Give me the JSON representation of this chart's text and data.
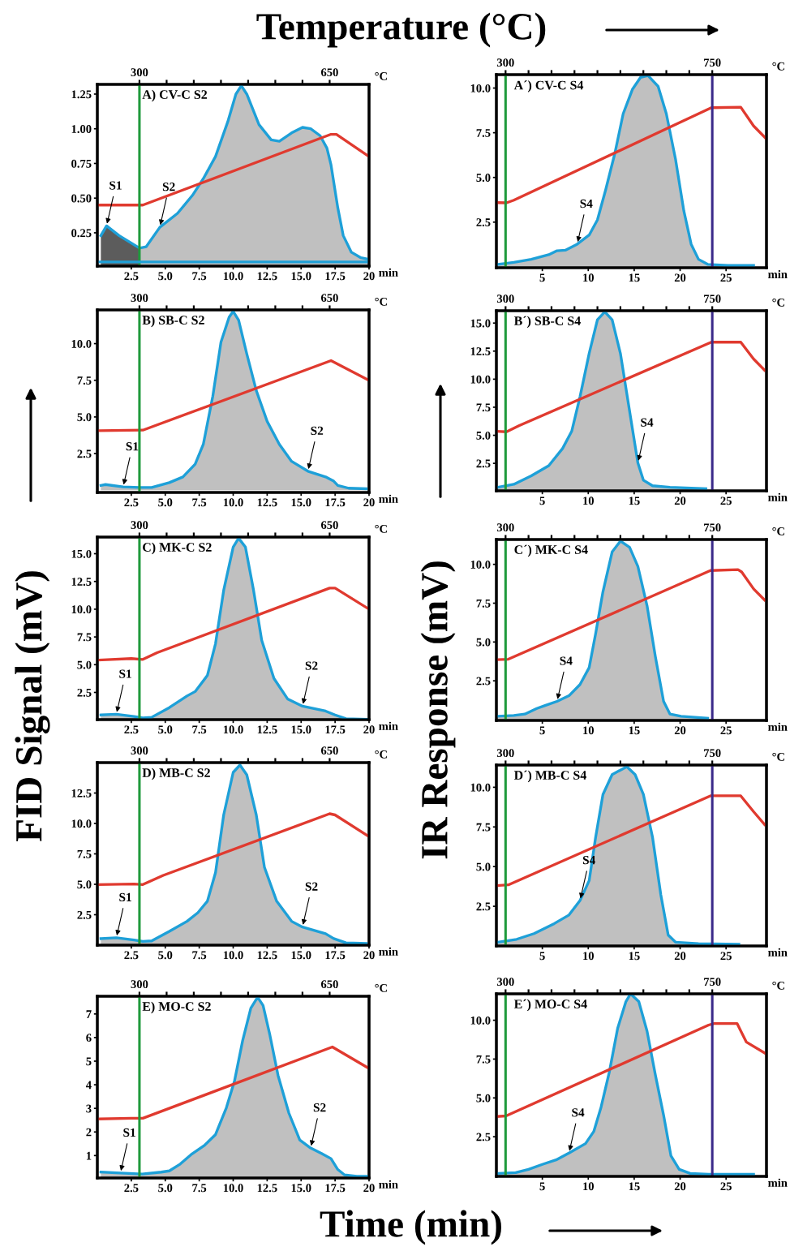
{
  "chart_data": [
    {
      "type": "line",
      "title": "A) CV-C S2",
      "xlabel": "min",
      "x2label": "°C",
      "xlim": [
        0,
        20
      ],
      "ylim": [
        0.01,
        1.32
      ],
      "xticks": [
        2.5,
        {
          "value": 5,
          "label": "5.0"
        },
        7.5,
        {
          "value": 10,
          "label": "10.0"
        },
        12.5,
        {
          "value": 15,
          "label": "15.0"
        },
        17.5,
        20
      ],
      "yticks": [
        0.25,
        {
          "value": 0.5,
          "label": "0.50"
        },
        0.75,
        {
          "value": 1,
          "label": "1.00"
        },
        1.25
      ],
      "x2lim": [
        222.5,
        722.5
      ],
      "x2ticks": [
        300,
        {
          "value": 350,
          "label": null
        },
        {
          "value": 400,
          "label": null
        },
        {
          "value": 450,
          "label": null
        },
        {
          "value": 500,
          "label": null
        },
        {
          "value": 550,
          "label": null
        },
        {
          "value": 600,
          "label": null
        },
        650
      ],
      "ref_lines": [
        {
          "axis": "x",
          "value": 3.1,
          "color": "#1f9a3c"
        },
        {
          "axis": "y",
          "value": 0.04,
          "color": "#1ea0d8"
        }
      ],
      "series": [
        {
          "type": "area",
          "color": "#5c5c5c",
          "x": [
            0.26,
            0.68,
            1.6,
            3.1
          ],
          "values": [
            0.23,
            0.3,
            0.23,
            0.14
          ]
        },
        {
          "type": "area",
          "color": "#c0c0c0",
          "x": [
            3.1,
            3.6,
            4.6,
            5.9,
            7.0,
            7.8,
            8.7,
            9.6,
            10.2,
            10.6,
            11.0,
            11.9,
            12.8,
            13.4,
            14.3,
            15.1,
            15.7,
            16.4,
            16.9,
            17.2,
            17.7,
            18.1,
            18.7,
            19.4,
            19.9
          ],
          "values": [
            0.14,
            0.15,
            0.29,
            0.39,
            0.52,
            0.64,
            0.8,
            1.05,
            1.25,
            1.31,
            1.25,
            1.03,
            0.92,
            0.91,
            0.97,
            1.01,
            1.0,
            0.95,
            0.86,
            0.74,
            0.43,
            0.23,
            0.11,
            0.07,
            0.06
          ]
        },
        {
          "color": "#e03a2f",
          "x": [
            0.1,
            3.35,
            17.2,
            17.6,
            20
          ],
          "values": [
            0.45,
            0.45,
            0.96,
            0.96,
            0.8
          ]
        }
      ],
      "annotations": [
        {
          "text": "S1",
          "x": 0.68,
          "y": 0.3
        },
        {
          "text": "S2",
          "x": 4.6,
          "y": 0.29
        },
        "Temperature (°C)",
        "FID Signal (mV)",
        "IR Response (mV)",
        "Time (min)"
      ]
    },
    {
      "type": "line",
      "title": "A´) CV-C S4",
      "xlabel": "min",
      "x2label": "°C",
      "xlim": [
        0,
        29.4
      ],
      "ylim": [
        -0.05,
        10.75
      ],
      "xticks": [
        5,
        10,
        15,
        20,
        25
      ],
      "yticks": [
        2.5,
        {
          "value": 5,
          "label": "5.0"
        },
        7.5,
        {
          "value": 10,
          "label": "10.0"
        }
      ],
      "x2lim": [
        280,
        868
      ],
      "x2ticks": [
        300,
        {
          "value": 350,
          "label": null
        },
        {
          "value": 400,
          "label": null
        },
        {
          "value": 450,
          "label": null
        },
        {
          "value": 500,
          "label": null
        },
        {
          "value": 550,
          "label": null
        },
        {
          "value": 600,
          "label": null
        },
        {
          "value": 650,
          "label": null
        },
        {
          "value": 700,
          "label": null
        },
        750
      ],
      "ref_lines": [
        {
          "axis": "x",
          "value": 1.0,
          "color": "#1f9a3c"
        },
        {
          "axis": "x",
          "value": 23.5,
          "color": "#3b2a8a"
        }
      ],
      "series": [
        {
          "type": "area",
          "color": "#c0c0c0",
          "x": [
            0.16,
            1.9,
            3.8,
            5.7,
            6.6,
            7.5,
            8.8,
            10.1,
            11.0,
            11.9,
            12.9,
            13.8,
            14.8,
            15.7,
            16.5,
            17.6,
            18.5,
            19.5,
            20.4,
            21.2,
            22.0,
            23.0,
            25.2,
            28.0
          ],
          "values": [
            0.14,
            0.25,
            0.42,
            0.68,
            0.9,
            0.93,
            1.27,
            1.78,
            2.63,
            4.32,
            6.36,
            8.56,
            9.92,
            10.6,
            10.7,
            10.1,
            8.56,
            6.02,
            3.14,
            1.27,
            0.42,
            0.14,
            0.08,
            0.08
          ]
        },
        {
          "color": "#e03a2f",
          "x": [
            0,
            1.1,
            1.9,
            23.4,
            26.6,
            28.0,
            29.4
          ],
          "values": [
            3.59,
            3.58,
            3.73,
            8.9,
            8.93,
            7.88,
            7.15
          ]
        }
      ],
      "annotations": [
        {
          "text": "S4",
          "x": 8.8,
          "y": 1.27
        }
      ]
    },
    {
      "type": "line",
      "title": "B) SB-C S2",
      "xlabel": "min",
      "x2label": "°C",
      "xlim": [
        0,
        20
      ],
      "ylim": [
        -0.15,
        12.3
      ],
      "xticks": [
        2.5,
        {
          "value": 5,
          "label": "5.0"
        },
        7.5,
        {
          "value": 10,
          "label": "10.0"
        },
        12.5,
        {
          "value": 15,
          "label": "15.0"
        },
        17.5,
        20
      ],
      "yticks": [
        2.5,
        {
          "value": 5,
          "label": "5.0"
        },
        7.5,
        {
          "value": 10,
          "label": "10.0"
        }
      ],
      "x2lim": [
        222.5,
        722.5
      ],
      "x2ticks": [
        300,
        {
          "value": 350,
          "label": null
        },
        {
          "value": 400,
          "label": null
        },
        {
          "value": 450,
          "label": null
        },
        {
          "value": 500,
          "label": null
        },
        {
          "value": 550,
          "label": null
        },
        {
          "value": 600,
          "label": null
        },
        650
      ],
      "ref_lines": [
        {
          "axis": "x",
          "value": 3.1,
          "color": "#1f9a3c"
        }
      ],
      "series": [
        {
          "type": "area",
          "color": "#c0c0c0",
          "x": [
            0.26,
            0.6,
            1.9,
            3.1,
            4.0,
            5.3,
            6.3,
            7.2,
            7.8,
            8.5,
            9.1,
            9.7,
            10.0,
            10.4,
            11.0,
            11.7,
            12.5,
            13.4,
            14.3,
            15.5,
            16.8,
            17.4,
            17.7,
            18.5,
            19.8
          ],
          "values": [
            0.33,
            0.39,
            0.23,
            0.19,
            0.19,
            0.52,
            0.91,
            1.78,
            3.13,
            6.42,
            10.1,
            11.8,
            12.2,
            11.6,
            9.3,
            6.8,
            4.7,
            3.13,
            1.97,
            1.3,
            0.91,
            0.62,
            0.33,
            0.14,
            0.1
          ]
        },
        {
          "color": "#e03a2f",
          "x": [
            0.1,
            3.35,
            17.2,
            20
          ],
          "values": [
            4.06,
            4.1,
            8.84,
            7.49
          ]
        }
      ],
      "annotations": [
        {
          "text": "S1",
          "x": 1.9,
          "y": 0.23
        },
        {
          "text": "S2",
          "x": 15.5,
          "y": 1.3
        }
      ]
    },
    {
      "type": "line",
      "title": "B´) SB-C S4",
      "xlabel": "min",
      "x2label": "°C",
      "xlim": [
        0,
        29.4
      ],
      "ylim": [
        0.05,
        16.1
      ],
      "xticks": [
        5,
        10,
        15,
        20,
        25
      ],
      "yticks": [
        2.5,
        {
          "value": 5,
          "label": "5.0"
        },
        7.5,
        {
          "value": 10,
          "label": "10.0"
        },
        12.5,
        {
          "value": 15,
          "label": "15.0"
        }
      ],
      "x2lim": [
        280,
        868
      ],
      "x2ticks": [
        300,
        {
          "value": 350,
          "label": null
        },
        {
          "value": 400,
          "label": null
        },
        {
          "value": 450,
          "label": null
        },
        {
          "value": 500,
          "label": null
        },
        {
          "value": 550,
          "label": null
        },
        {
          "value": 600,
          "label": null
        },
        {
          "value": 650,
          "label": null
        },
        {
          "value": 700,
          "label": null
        },
        750
      ],
      "ref_lines": [
        {
          "axis": "x",
          "value": 1.0,
          "color": "#1f9a3c"
        },
        {
          "axis": "x",
          "value": 23.5,
          "color": "#3b2a8a"
        }
      ],
      "series": [
        {
          "type": "area",
          "color": "#c0c0c0",
          "x": [
            0.16,
            1.9,
            3.8,
            5.7,
            7.2,
            8.2,
            9.1,
            10.1,
            11.0,
            11.8,
            12.6,
            13.5,
            14.5,
            15.4,
            16.0,
            17.0,
            18.9,
            22.8
          ],
          "values": [
            0.37,
            0.63,
            1.39,
            2.29,
            3.82,
            5.36,
            8.43,
            12.3,
            15.3,
            16.0,
            15.3,
            12.3,
            7.15,
            2.54,
            1.0,
            0.5,
            0.37,
            0.24
          ]
        },
        {
          "color": "#e03a2f",
          "x": [
            0,
            1.1,
            2.5,
            23.4,
            26.6,
            28.0,
            29.2
          ],
          "values": [
            5.36,
            5.31,
            5.87,
            13.3,
            13.3,
            11.8,
            10.8
          ]
        }
      ],
      "annotations": [
        {
          "text": "S4",
          "x": 15.4,
          "y": 2.54
        }
      ]
    },
    {
      "type": "line",
      "title": "C) MK-C S2",
      "xlabel": "min",
      "x2label": "°C",
      "xlim": [
        0,
        20
      ],
      "ylim": [
        0.05,
        16.5
      ],
      "xticks": [
        2.5,
        {
          "value": 5,
          "label": "5.0"
        },
        7.5,
        {
          "value": 10,
          "label": "10.0"
        },
        12.5,
        {
          "value": 15,
          "label": "15.0"
        },
        17.5,
        20
      ],
      "yticks": [
        2.5,
        {
          "value": 5,
          "label": "5.0"
        },
        7.5,
        {
          "value": 10,
          "label": "10.0"
        },
        12.5,
        {
          "value": 15,
          "label": "15.0"
        }
      ],
      "x2lim": [
        222.5,
        722.5
      ],
      "x2ticks": [
        300,
        {
          "value": 350,
          "label": null
        },
        {
          "value": 400,
          "label": null
        },
        {
          "value": 450,
          "label": null
        },
        {
          "value": 500,
          "label": null
        },
        {
          "value": 550,
          "label": null
        },
        {
          "value": 600,
          "label": null
        },
        650
      ],
      "ref_lines": [
        {
          "axis": "x",
          "value": 3.1,
          "color": "#1f9a3c"
        }
      ],
      "series": [
        {
          "type": "area",
          "color": "#c0c0c0",
          "x": [
            0.26,
            1.4,
            2.7,
            3.35,
            4.0,
            5.3,
            6.6,
            7.2,
            8.1,
            8.7,
            9.3,
            10.0,
            10.4,
            10.9,
            11.5,
            12.1,
            13.0,
            14.0,
            15.1,
            16.8,
            17.5,
            18.3,
            19.8
          ],
          "values": [
            0.47,
            0.53,
            0.34,
            0.21,
            0.26,
            1.13,
            2.18,
            2.58,
            4.03,
            6.9,
            11.7,
            15.6,
            16.4,
            15.6,
            11.7,
            7.2,
            3.76,
            1.92,
            1.26,
            0.82,
            0.47,
            0.13,
            0.08
          ]
        },
        {
          "color": "#e03a2f",
          "x": [
            0.1,
            2.5,
            3.35,
            4.4,
            17.1,
            17.5,
            20
          ],
          "values": [
            5.42,
            5.55,
            5.47,
            6.08,
            11.9,
            11.9,
            10.0
          ]
        }
      ],
      "annotations": [
        {
          "text": "S1",
          "x": 1.4,
          "y": 0.53
        },
        {
          "text": "S2",
          "x": 15.1,
          "y": 1.26
        }
      ]
    },
    {
      "type": "line",
      "title": "C´) MK-C S4",
      "xlabel": "min",
      "x2label": "°C",
      "xlim": [
        0,
        29.4
      ],
      "ylim": [
        -0.05,
        11.6
      ],
      "xticks": [
        5,
        10,
        15,
        20,
        25
      ],
      "yticks": [
        2.5,
        {
          "value": 5,
          "label": "5.0"
        },
        7.5,
        {
          "value": 10,
          "label": "10.0"
        }
      ],
      "x2lim": [
        280,
        868
      ],
      "x2ticks": [
        300,
        {
          "value": 350,
          "label": null
        },
        {
          "value": 400,
          "label": null
        },
        {
          "value": 450,
          "label": null
        },
        {
          "value": 500,
          "label": null
        },
        {
          "value": 550,
          "label": null
        },
        {
          "value": 600,
          "label": null
        },
        {
          "value": 650,
          "label": null
        },
        {
          "value": 700,
          "label": null
        },
        750
      ],
      "ref_lines": [
        {
          "axis": "x",
          "value": 1.0,
          "color": "#1f9a3c"
        },
        {
          "axis": "x",
          "value": 23.5,
          "color": "#3b2a8a"
        }
      ],
      "series": [
        {
          "type": "area",
          "color": "#c0c0c0",
          "x": [
            0.16,
            1.9,
            3.1,
            4.4,
            5.3,
            6.6,
            7.9,
            9.1,
            10.1,
            10.8,
            11.6,
            12.6,
            13.5,
            14.5,
            15.4,
            16.4,
            17.3,
            18.2,
            18.9,
            20.1,
            23.0
          ],
          "values": [
            0.22,
            0.27,
            0.36,
            0.72,
            0.91,
            1.18,
            1.54,
            2.26,
            3.35,
            5.53,
            8.24,
            10.8,
            11.5,
            11.1,
            9.87,
            7.34,
            4.08,
            1.18,
            0.36,
            0.22,
            0.09
          ]
        },
        {
          "color": "#e03a2f",
          "x": [
            0,
            1.3,
            23.3,
            26.3,
            26.7,
            28.0,
            29.2
          ],
          "values": [
            3.86,
            3.89,
            9.6,
            9.66,
            9.51,
            8.42,
            7.7
          ]
        }
      ],
      "annotations": [
        {
          "text": "S4",
          "x": 6.6,
          "y": 1.18
        }
      ]
    },
    {
      "type": "line",
      "title": "D) MB-C S2",
      "xlabel": "min",
      "x2label": "°C",
      "xlim": [
        0,
        20
      ],
      "ylim": [
        0,
        15.0
      ],
      "xticks": [
        2.5,
        {
          "value": 5,
          "label": "5.0"
        },
        7.5,
        {
          "value": 10,
          "label": "10.0"
        },
        12.5,
        {
          "value": 15,
          "label": "15.0"
        },
        17.5,
        20
      ],
      "yticks": [
        2.5,
        {
          "value": 5,
          "label": "5.0"
        },
        7.5,
        {
          "value": 10,
          "label": "10.0"
        },
        12.5
      ],
      "x2lim": [
        222.5,
        722.5
      ],
      "x2ticks": [
        300,
        {
          "value": 350,
          "label": null
        },
        {
          "value": 400,
          "label": null
        },
        {
          "value": 450,
          "label": null
        },
        {
          "value": 500,
          "label": null
        },
        {
          "value": 550,
          "label": null
        },
        {
          "value": 600,
          "label": null
        },
        650
      ],
      "ref_lines": [
        {
          "axis": "x",
          "value": 3.1,
          "color": "#1f9a3c"
        }
      ],
      "series": [
        {
          "type": "area",
          "color": "#c0c0c0",
          "x": [
            0.26,
            1.4,
            2.7,
            3.35,
            4.0,
            5.3,
            6.6,
            7.4,
            8.1,
            8.7,
            9.3,
            10.0,
            10.5,
            11.0,
            11.7,
            12.3,
            13.2,
            14.3,
            15.1,
            16.8,
            17.4,
            18.3,
            19.8
          ],
          "values": [
            0.54,
            0.61,
            0.42,
            0.31,
            0.35,
            1.13,
            1.96,
            2.67,
            3.61,
            5.97,
            10.7,
            14.2,
            14.8,
            14.0,
            10.7,
            6.4,
            3.61,
            1.96,
            1.49,
            0.94,
            0.54,
            0.19,
            0.14
          ]
        },
        {
          "color": "#e03a2f",
          "x": [
            0.1,
            2.7,
            3.35,
            4.85,
            17.1,
            17.5,
            20
          ],
          "values": [
            4.98,
            5.02,
            4.98,
            5.73,
            10.8,
            10.7,
            8.92
          ]
        }
      ],
      "annotations": [
        {
          "text": "S1",
          "x": 1.4,
          "y": 0.61
        },
        {
          "text": "S2",
          "x": 15.1,
          "y": 1.49
        }
      ]
    },
    {
      "type": "line",
      "title": "D´) MB-C S4",
      "xlabel": "min",
      "x2label": "°C",
      "xlim": [
        0,
        29.4
      ],
      "ylim": [
        0,
        11.4
      ],
      "xticks": [
        5,
        10,
        15,
        20,
        25
      ],
      "yticks": [
        2.5,
        {
          "value": 5,
          "label": "5.0"
        },
        7.5,
        {
          "value": 10,
          "label": "10.0"
        }
      ],
      "x2lim": [
        280,
        868
      ],
      "x2ticks": [
        300,
        {
          "value": 350,
          "label": null
        },
        {
          "value": 400,
          "label": null
        },
        {
          "value": 450,
          "label": null
        },
        {
          "value": 500,
          "label": null
        },
        {
          "value": 550,
          "label": null
        },
        {
          "value": 600,
          "label": null
        },
        {
          "value": 650,
          "label": null
        },
        {
          "value": 700,
          "label": null
        },
        750
      ],
      "ref_lines": [
        {
          "axis": "x",
          "value": 1.0,
          "color": "#1f9a3c"
        },
        {
          "axis": "x",
          "value": 23.5,
          "color": "#3b2a8a"
        }
      ],
      "series": [
        {
          "type": "area",
          "color": "#c0c0c0",
          "x": [
            0.16,
            2.2,
            4.1,
            6.3,
            7.9,
            9.1,
            10.1,
            10.8,
            11.6,
            12.6,
            14.2,
            15.1,
            16.0,
            17.0,
            17.9,
            18.7,
            19.5,
            22.0,
            26.4
          ],
          "values": [
            0.24,
            0.42,
            0.78,
            1.41,
            1.95,
            2.86,
            4.12,
            6.84,
            9.55,
            10.8,
            11.3,
            10.8,
            9.55,
            6.84,
            3.22,
            0.69,
            0.24,
            0.15,
            0.11
          ]
        },
        {
          "color": "#e03a2f",
          "x": [
            0,
            1.3,
            23.3,
            26.6,
            28.0,
            29.2
          ],
          "values": [
            3.8,
            3.85,
            9.46,
            9.46,
            8.46,
            7.65
          ]
        }
      ],
      "annotations": [
        {
          "text": "S4",
          "x": 9.1,
          "y": 2.86
        }
      ]
    },
    {
      "type": "line",
      "title": "E) MO-C S2",
      "xlabel": "min",
      "x2label": "°C",
      "xlim": [
        0,
        20
      ],
      "ylim": [
        0.05,
        7.75
      ],
      "xticks": [
        2.5,
        {
          "value": 5,
          "label": "5.0"
        },
        7.5,
        {
          "value": 10,
          "label": "10.0"
        },
        12.5,
        {
          "value": 15,
          "label": "15.0"
        },
        17.5,
        20
      ],
      "yticks": [
        1,
        2,
        3,
        4,
        5,
        6,
        7
      ],
      "x2lim": [
        222.5,
        722.5
      ],
      "x2ticks": [
        300,
        {
          "value": 350,
          "label": null
        },
        {
          "value": 400,
          "label": null
        },
        {
          "value": 450,
          "label": null
        },
        {
          "value": 500,
          "label": null
        },
        {
          "value": 550,
          "label": null
        },
        {
          "value": 600,
          "label": null
        },
        650
      ],
      "ref_lines": [
        {
          "axis": "x",
          "value": 3.1,
          "color": "#1f9a3c"
        }
      ],
      "series": [
        {
          "type": "area",
          "color": "#c0c0c0",
          "x": [
            0.26,
            1.7,
            3.3,
            4.7,
            5.3,
            6.1,
            6.9,
            7.9,
            8.7,
            9.5,
            10.1,
            10.7,
            11.3,
            11.8,
            12.2,
            12.7,
            13.3,
            14.1,
            14.9,
            15.7,
            16.5,
            17.2,
            17.7,
            18.2,
            19.1,
            20.0
          ],
          "values": [
            0.3,
            0.26,
            0.22,
            0.3,
            0.35,
            0.64,
            1.04,
            1.44,
            1.89,
            3.03,
            4.17,
            5.88,
            7.25,
            7.71,
            7.36,
            6.11,
            4.4,
            2.8,
            1.66,
            1.32,
            1.09,
            0.87,
            0.41,
            0.18,
            0.12,
            0.12
          ]
        },
        {
          "color": "#e03a2f",
          "x": [
            0.1,
            2.5,
            3.35,
            17.3,
            20
          ],
          "values": [
            2.55,
            2.58,
            2.58,
            5.6,
            4.69
          ]
        }
      ],
      "annotations": [
        {
          "text": "S1",
          "x": 1.7,
          "y": 0.26
        },
        {
          "text": "S2",
          "x": 15.7,
          "y": 1.32
        }
      ]
    },
    {
      "type": "line",
      "title": "E´) MO-C S4",
      "xlabel": "min",
      "x2label": "°C",
      "xlim": [
        0,
        29.4
      ],
      "ylim": [
        -0.05,
        11.7
      ],
      "xticks": [
        5,
        10,
        15,
        20,
        25
      ],
      "yticks": [
        2.5,
        {
          "value": 5,
          "label": "5.0"
        },
        7.5,
        {
          "value": 10,
          "label": "10.0"
        }
      ],
      "x2lim": [
        280,
        868
      ],
      "x2ticks": [
        300,
        {
          "value": 350,
          "label": null
        },
        {
          "value": 400,
          "label": null
        },
        {
          "value": 450,
          "label": null
        },
        {
          "value": 500,
          "label": null
        },
        {
          "value": 550,
          "label": null
        },
        {
          "value": 600,
          "label": null
        },
        {
          "value": 650,
          "label": null
        },
        {
          "value": 700,
          "label": null
        },
        750
      ],
      "ref_lines": [
        {
          "axis": "x",
          "value": 1.0,
          "color": "#1f9a3c"
        },
        {
          "axis": "x",
          "value": 23.5,
          "color": "#3b2a8a"
        }
      ],
      "series": [
        {
          "type": "area",
          "color": "#c0c0c0",
          "x": [
            0.2,
            2.1,
            3.5,
            5.0,
            6.5,
            7.9,
            9.7,
            10.6,
            11.4,
            12.3,
            13.2,
            14.1,
            14.6,
            15.5,
            16.4,
            17.3,
            18.2,
            19.0,
            19.9,
            21.1,
            23.1,
            28.0
          ],
          "values": [
            0.14,
            0.19,
            0.4,
            0.72,
            1.01,
            1.45,
            2.06,
            2.84,
            4.42,
            6.68,
            9.48,
            11.2,
            11.7,
            11.2,
            9.3,
            6.5,
            3.89,
            1.27,
            0.4,
            0.14,
            0.09,
            0.09
          ]
        },
        {
          "color": "#e03a2f",
          "x": [
            0,
            1.05,
            23.1,
            23.7,
            26.2,
            27.2,
            29.4
          ],
          "values": [
            3.8,
            3.84,
            9.69,
            9.79,
            9.79,
            8.6,
            7.82
          ]
        }
      ],
      "annotations": [
        {
          "text": "S4",
          "x": 7.9,
          "y": 1.45
        }
      ]
    }
  ]
}
